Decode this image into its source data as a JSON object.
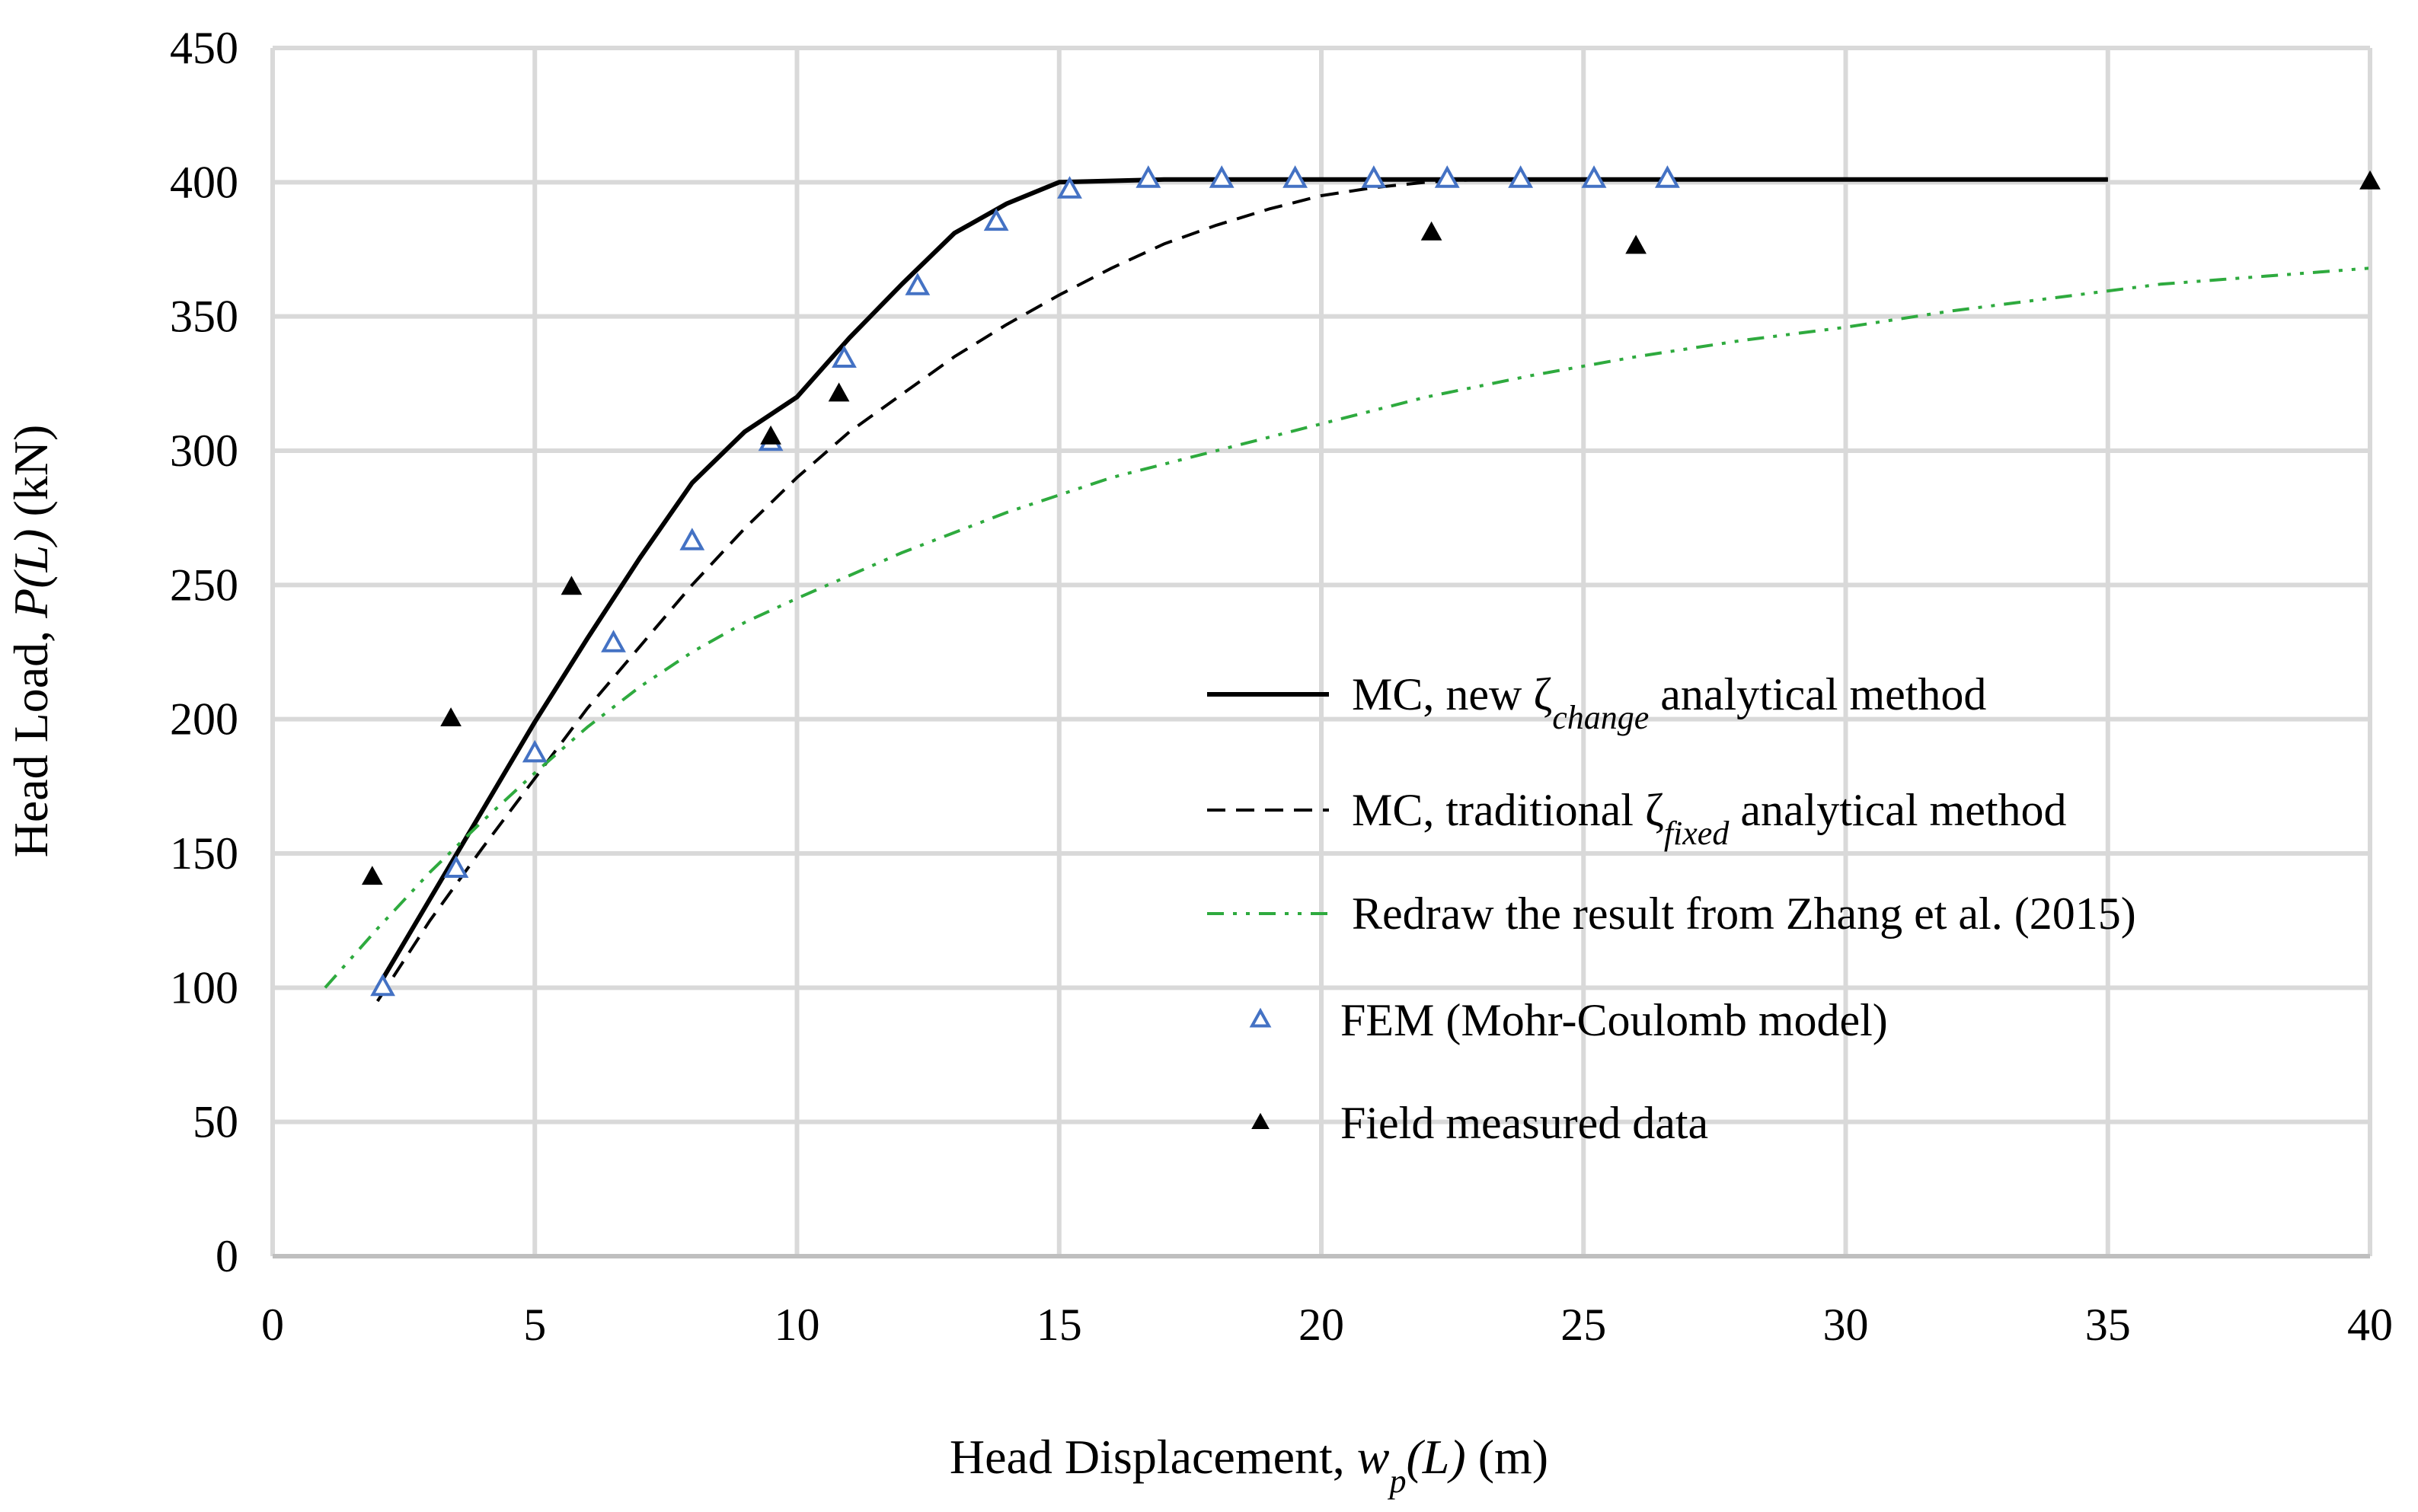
{
  "chart_data": {
    "type": "line",
    "title": "",
    "xlabel": {
      "prefix": "Head Displacement, ",
      "var": "w",
      "sub": "p",
      "arg": "(L)",
      "unit": " (m)"
    },
    "ylabel": {
      "prefix": "Head Load, ",
      "var": "P(L)",
      "unit": " (kN)"
    },
    "xlim": [
      0,
      40
    ],
    "ylim": [
      0,
      450
    ],
    "xticks": [
      0,
      5,
      10,
      15,
      20,
      25,
      30,
      35,
      40
    ],
    "yticks": [
      0,
      50,
      100,
      150,
      200,
      250,
      300,
      350,
      400,
      450
    ],
    "grid": true,
    "legend_position": "center-right",
    "series": [
      {
        "name": "MC, new ζchange analytical method",
        "legend": {
          "before": "MC, new ζ",
          "sub": "change",
          "after": " analytical method"
        },
        "style": "solid",
        "color": "#000000",
        "points": [
          [
            2,
            100
          ],
          [
            3,
            133
          ],
          [
            4,
            166
          ],
          [
            5,
            199
          ],
          [
            6,
            230
          ],
          [
            7,
            260
          ],
          [
            8,
            288
          ],
          [
            9,
            307
          ],
          [
            10,
            320
          ],
          [
            11,
            342
          ],
          [
            12,
            362
          ],
          [
            13,
            381
          ],
          [
            14,
            392
          ],
          [
            15,
            400
          ],
          [
            17,
            401
          ],
          [
            20,
            401
          ],
          [
            25,
            401
          ],
          [
            30,
            401
          ],
          [
            35,
            401
          ]
        ]
      },
      {
        "name": "MC, traditional ζfixed analytical method",
        "legend": {
          "before": "MC, traditional ζ",
          "sub": "fixed",
          "after": " analytical method"
        },
        "style": "dashed",
        "color": "#000000",
        "points": [
          [
            2,
            95
          ],
          [
            3,
            125
          ],
          [
            4,
            152
          ],
          [
            5,
            178
          ],
          [
            6,
            204
          ],
          [
            7,
            227
          ],
          [
            8,
            250
          ],
          [
            9,
            271
          ],
          [
            10,
            290
          ],
          [
            11,
            307
          ],
          [
            12,
            321
          ],
          [
            13,
            335
          ],
          [
            14,
            347
          ],
          [
            15,
            358
          ],
          [
            16,
            368
          ],
          [
            17,
            377
          ],
          [
            18,
            384
          ],
          [
            19,
            390
          ],
          [
            20,
            395
          ],
          [
            21,
            398
          ],
          [
            22,
            400
          ],
          [
            23,
            401
          ],
          [
            25,
            401
          ],
          [
            30,
            401
          ],
          [
            35,
            401
          ]
        ]
      },
      {
        "name": "Redraw the result from Zhang et al. (2015)",
        "legend": {
          "before": "Redraw the result from Zhang et al. (2015)",
          "sub": "",
          "after": ""
        },
        "style": "dashdotdot",
        "color": "#2eaa3e",
        "points": [
          [
            1,
            100
          ],
          [
            2,
            122
          ],
          [
            3,
            143
          ],
          [
            4,
            162
          ],
          [
            5,
            180
          ],
          [
            6,
            197
          ],
          [
            7,
            212
          ],
          [
            8,
            225
          ],
          [
            9,
            236
          ],
          [
            10,
            245
          ],
          [
            12,
            262
          ],
          [
            14,
            277
          ],
          [
            16,
            290
          ],
          [
            18,
            300
          ],
          [
            20,
            310
          ],
          [
            22,
            320
          ],
          [
            24,
            328
          ],
          [
            26,
            335
          ],
          [
            28,
            341
          ],
          [
            30,
            346
          ],
          [
            32,
            352
          ],
          [
            34,
            357
          ],
          [
            36,
            362
          ],
          [
            38,
            365
          ],
          [
            40,
            368
          ]
        ]
      },
      {
        "name": "FEM (Mohr-Coulomb model)",
        "legend": {
          "before": "FEM (Mohr-Coulomb model)",
          "sub": "",
          "after": ""
        },
        "style": "marker-open-triangle",
        "color": "#4472c4",
        "points": [
          [
            2.1,
            100
          ],
          [
            3.5,
            144
          ],
          [
            5,
            187
          ],
          [
            6.5,
            228
          ],
          [
            8,
            266
          ],
          [
            9.5,
            303
          ],
          [
            10.9,
            334
          ],
          [
            12.3,
            361
          ],
          [
            13.8,
            385
          ],
          [
            15.2,
            397
          ],
          [
            16.7,
            401
          ],
          [
            18.1,
            401
          ],
          [
            19.5,
            401
          ],
          [
            21,
            401
          ],
          [
            22.4,
            401
          ],
          [
            23.8,
            401
          ],
          [
            25.2,
            401
          ],
          [
            26.6,
            401
          ]
        ]
      },
      {
        "name": "Field measured data",
        "legend": {
          "before": "Field measured data",
          "sub": "",
          "after": ""
        },
        "style": "marker-filled-triangle",
        "color": "#000000",
        "points": [
          [
            1.9,
            141
          ],
          [
            3.4,
            200
          ],
          [
            5.7,
            249
          ],
          [
            9.5,
            305
          ],
          [
            10.8,
            321
          ],
          [
            22.1,
            381
          ],
          [
            26,
            376
          ],
          [
            40,
            400
          ]
        ]
      }
    ]
  }
}
